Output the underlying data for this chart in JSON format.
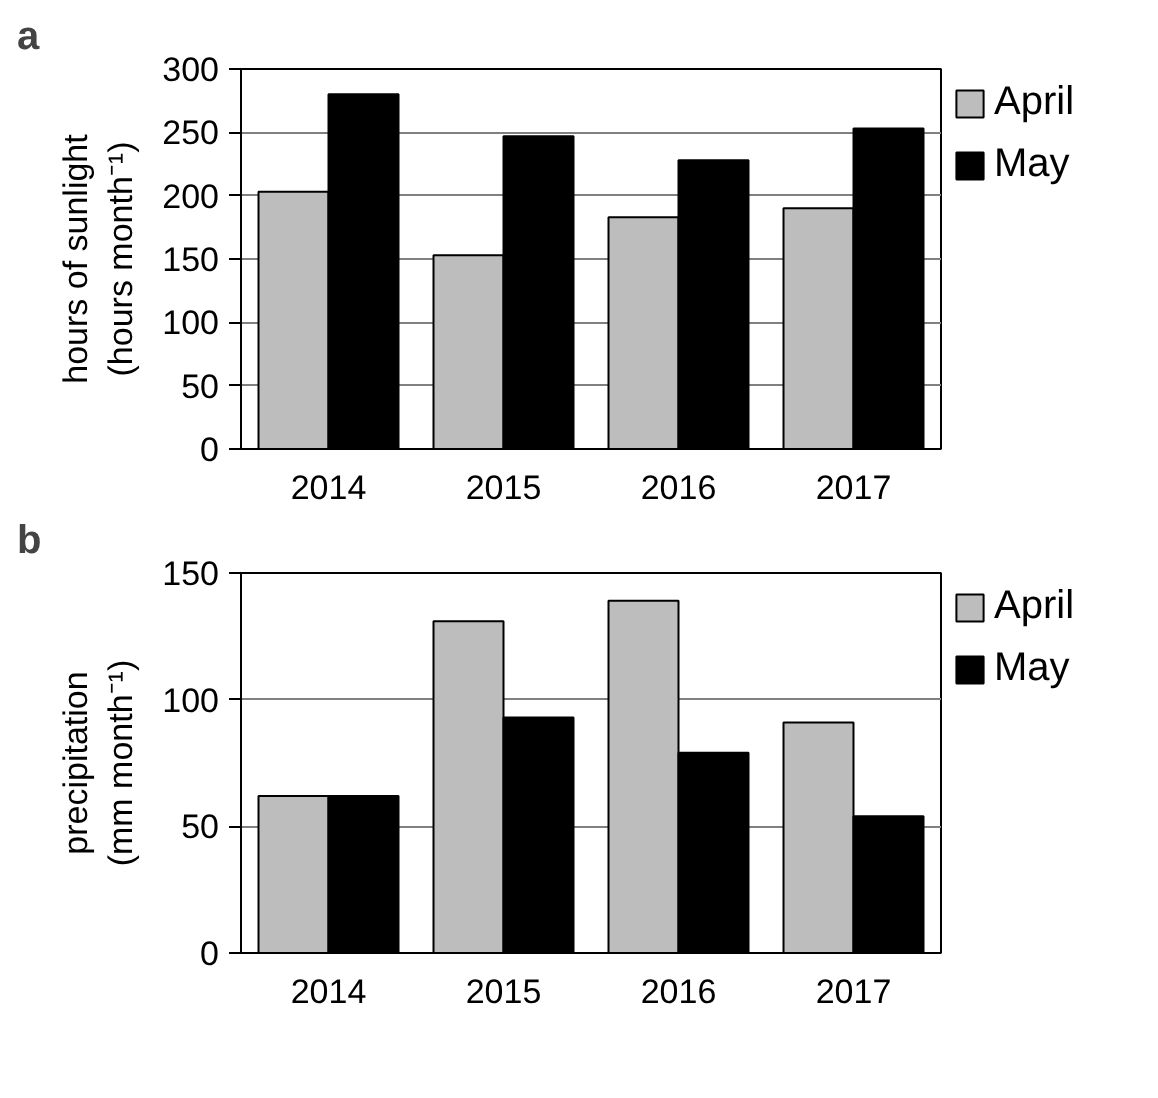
{
  "chart_data": [
    {
      "type": "bar",
      "title": "a",
      "ylabel": "hours of sunlight\n(hours month⁻¹)",
      "categories": [
        "2014",
        "2015",
        "2016",
        "2017"
      ],
      "series": [
        {
          "name": "April",
          "color": "#bdbdbd",
          "values": [
            203,
            153,
            183,
            190
          ]
        },
        {
          "name": "May",
          "color": "#000000",
          "values": [
            280,
            247,
            228,
            253
          ]
        }
      ],
      "ylim": [
        0,
        300
      ],
      "yticks": [
        0,
        50,
        100,
        150,
        200,
        250,
        300
      ],
      "grid": "y",
      "legend": "top right"
    },
    {
      "type": "bar",
      "title": "b",
      "ylabel": "precipitation\n(mm month⁻¹)",
      "categories": [
        "2014",
        "2015",
        "2016",
        "2017"
      ],
      "series": [
        {
          "name": "April",
          "color": "#bdbdbd",
          "values": [
            62,
            131,
            139,
            91
          ]
        },
        {
          "name": "May",
          "color": "#000000",
          "values": [
            62,
            93,
            79,
            54
          ]
        }
      ],
      "ylim": [
        0,
        150
      ],
      "yticks": [
        0,
        50,
        100,
        150
      ],
      "grid": "y",
      "legend": "top right"
    }
  ]
}
